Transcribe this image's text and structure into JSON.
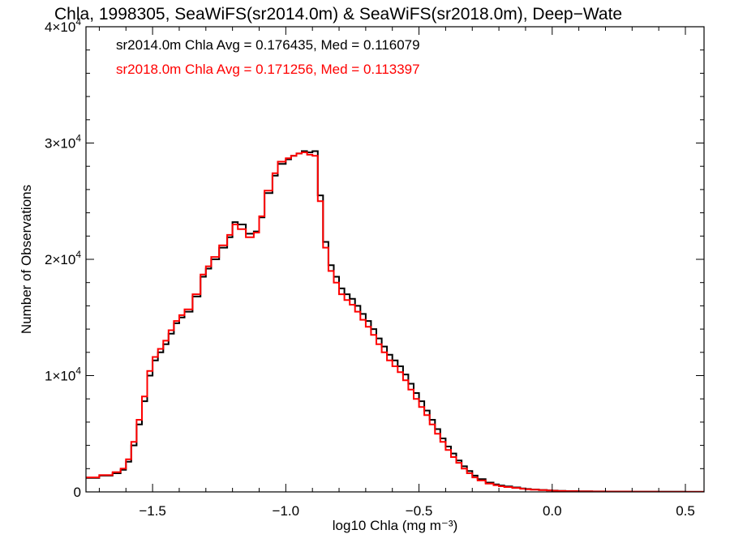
{
  "chart_data": {
    "type": "line",
    "title": "Chla, 1998305, SeaWiFS(sr2014.0m) & SeaWiFS(sr2018.0m), Deep−Wate",
    "xlabel": "log10 Chla (mg m⁻³)",
    "ylabel": "Number of Observations",
    "xlim": [
      -1.75,
      0.57
    ],
    "ylim": [
      0,
      40000
    ],
    "xticks": [
      {
        "value": -1.5,
        "label": "−1.5"
      },
      {
        "value": -1.0,
        "label": "−1.0"
      },
      {
        "value": -0.5,
        "label": "−0.5"
      },
      {
        "value": 0.0,
        "label": "0.0"
      },
      {
        "value": 0.5,
        "label": "0.5"
      }
    ],
    "yticks": [
      {
        "value": 0,
        "base": "0",
        "exp": ""
      },
      {
        "value": 10000,
        "base": "1×10",
        "exp": "4"
      },
      {
        "value": 20000,
        "base": "2×10",
        "exp": "4"
      },
      {
        "value": 30000,
        "base": "3×10",
        "exp": "4"
      },
      {
        "value": 40000,
        "base": "4×10",
        "exp": "4"
      }
    ],
    "grid": false,
    "legend_position": "top-left",
    "series": [
      {
        "label": "sr2014.0m Chla Avg = 0.176435, Med = 0.116079",
        "color": "#000000",
        "x": [
          -1.75,
          -1.7,
          -1.65,
          -1.62,
          -1.6,
          -1.58,
          -1.56,
          -1.54,
          -1.52,
          -1.5,
          -1.48,
          -1.46,
          -1.44,
          -1.42,
          -1.4,
          -1.38,
          -1.35,
          -1.32,
          -1.3,
          -1.28,
          -1.25,
          -1.22,
          -1.2,
          -1.18,
          -1.15,
          -1.12,
          -1.1,
          -1.08,
          -1.05,
          -1.03,
          -1.0,
          -0.98,
          -0.96,
          -0.94,
          -0.92,
          -0.9,
          -0.88,
          -0.86,
          -0.84,
          -0.82,
          -0.8,
          -0.78,
          -0.76,
          -0.74,
          -0.72,
          -0.7,
          -0.68,
          -0.66,
          -0.64,
          -0.62,
          -0.6,
          -0.58,
          -0.56,
          -0.54,
          -0.52,
          -0.5,
          -0.48,
          -0.46,
          -0.44,
          -0.42,
          -0.4,
          -0.38,
          -0.36,
          -0.34,
          -0.32,
          -0.3,
          -0.28,
          -0.25,
          -0.22,
          -0.2,
          -0.18,
          -0.15,
          -0.12,
          -0.1,
          -0.08,
          -0.05,
          -0.02,
          0.0,
          0.02,
          0.05,
          0.1,
          0.15,
          0.2,
          0.3,
          0.4,
          0.5,
          0.57
        ],
        "y": [
          1200,
          1400,
          1600,
          1900,
          2600,
          4000,
          5800,
          7800,
          10000,
          11300,
          12000,
          12700,
          13600,
          14500,
          15000,
          15500,
          16800,
          18500,
          19200,
          20000,
          21000,
          21900,
          23200,
          23000,
          22200,
          22400,
          23600,
          25700,
          27200,
          28200,
          28600,
          28900,
          29100,
          29300,
          29200,
          29300,
          25500,
          21500,
          19500,
          18500,
          17500,
          17000,
          16600,
          16000,
          15300,
          14700,
          14000,
          13200,
          12500,
          11800,
          11300,
          10800,
          10100,
          9300,
          8500,
          7800,
          7000,
          6200,
          5400,
          4600,
          3900,
          3300,
          2700,
          2200,
          1800,
          1400,
          1100,
          800,
          650,
          550,
          470,
          380,
          300,
          250,
          210,
          170,
          130,
          110,
          90,
          70,
          50,
          40,
          30,
          20,
          12,
          8,
          5
        ]
      },
      {
        "label": "sr2018.0m Chla Avg = 0.171256, Med = 0.113397",
        "color": "#ff0000",
        "x": [
          -1.75,
          -1.7,
          -1.65,
          -1.62,
          -1.6,
          -1.58,
          -1.56,
          -1.54,
          -1.52,
          -1.5,
          -1.48,
          -1.46,
          -1.44,
          -1.42,
          -1.4,
          -1.38,
          -1.35,
          -1.32,
          -1.3,
          -1.28,
          -1.25,
          -1.22,
          -1.2,
          -1.18,
          -1.15,
          -1.12,
          -1.1,
          -1.08,
          -1.05,
          -1.03,
          -1.0,
          -0.98,
          -0.96,
          -0.94,
          -0.92,
          -0.9,
          -0.88,
          -0.86,
          -0.84,
          -0.82,
          -0.8,
          -0.78,
          -0.76,
          -0.74,
          -0.72,
          -0.7,
          -0.68,
          -0.66,
          -0.64,
          -0.62,
          -0.6,
          -0.58,
          -0.56,
          -0.54,
          -0.52,
          -0.5,
          -0.48,
          -0.46,
          -0.44,
          -0.42,
          -0.4,
          -0.38,
          -0.36,
          -0.34,
          -0.32,
          -0.3,
          -0.28,
          -0.25,
          -0.22,
          -0.2,
          -0.18,
          -0.15,
          -0.12,
          -0.1,
          -0.08,
          -0.05,
          -0.02,
          0.0,
          0.02,
          0.05,
          0.1,
          0.15,
          0.2,
          0.3,
          0.4,
          0.5,
          0.57
        ],
        "y": [
          1250,
          1450,
          1700,
          2000,
          2800,
          4300,
          6200,
          8200,
          10400,
          11600,
          12300,
          13000,
          13900,
          14700,
          15200,
          15700,
          17000,
          18700,
          19400,
          20200,
          21200,
          22100,
          23000,
          22600,
          21900,
          22300,
          23700,
          25900,
          27400,
          28400,
          28700,
          28900,
          29100,
          29200,
          29000,
          28900,
          25000,
          21000,
          19000,
          18000,
          17000,
          16500,
          16100,
          15500,
          14800,
          14200,
          13500,
          12700,
          12000,
          11300,
          10800,
          10300,
          9600,
          8800,
          8000,
          7300,
          6600,
          5800,
          5000,
          4300,
          3600,
          3000,
          2500,
          2000,
          1600,
          1250,
          980,
          720,
          580,
          490,
          420,
          340,
          270,
          230,
          190,
          150,
          120,
          100,
          80,
          60,
          45,
          35,
          25,
          18,
          10,
          6,
          4
        ]
      }
    ]
  }
}
